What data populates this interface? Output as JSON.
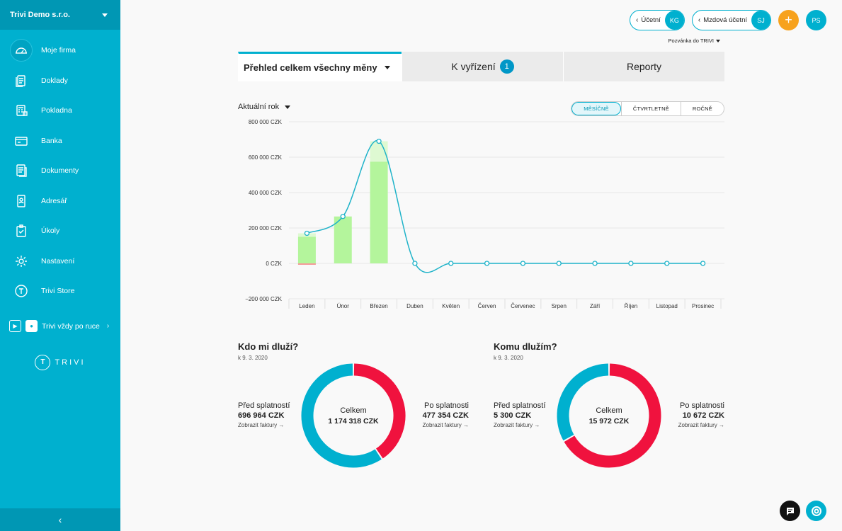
{
  "company": "Trivi Demo s.r.o.",
  "sidebar": {
    "items": [
      {
        "label": "Moje firma",
        "icon": "dashboard-icon"
      },
      {
        "label": "Doklady",
        "icon": "documents-icon"
      },
      {
        "label": "Pokladna",
        "icon": "cash-register-icon"
      },
      {
        "label": "Banka",
        "icon": "bank-card-icon"
      },
      {
        "label": "Dokumenty",
        "icon": "files-icon"
      },
      {
        "label": "Adresář",
        "icon": "address-book-icon"
      },
      {
        "label": "Úkoly",
        "icon": "clipboard-check-icon"
      },
      {
        "label": "Nastavení",
        "icon": "gear-icon"
      },
      {
        "label": "Trivi Store",
        "icon": "trivi-store-icon"
      }
    ],
    "apps_label": "Trivi vždy po ruce",
    "logo_text": "TRIVI",
    "logo_letter": "T"
  },
  "topbar": {
    "accountant": {
      "label": "Účetní",
      "initials": "KG"
    },
    "payroll": {
      "label": "Mzdová účetní",
      "initials": "SJ"
    },
    "user_initials": "PS",
    "invite": "Pozvánka do TRIVI"
  },
  "tabs": [
    {
      "label": "Přehled celkem všechny měny"
    },
    {
      "label": "K vyřízení",
      "badge": "1"
    },
    {
      "label": "Reporty"
    }
  ],
  "filters": {
    "year": "Aktuální rok",
    "periods": [
      "MĚSÍČNĚ",
      "ČTVRTLETNĚ",
      "ROČNĚ"
    ],
    "selected_period": "MĚSÍČNĚ"
  },
  "chart_data": {
    "type": "bar",
    "categories": [
      "Leden",
      "Únor",
      "Březen",
      "Duben",
      "Květen",
      "Červen",
      "Červenec",
      "Srpen",
      "Září",
      "Říjen",
      "Listopad",
      "Prosinec"
    ],
    "series": [
      {
        "values": [
          150000,
          265000,
          575000,
          0,
          0,
          0,
          0,
          0,
          0,
          0,
          0,
          0
        ]
      },
      {
        "values": [
          20000,
          0,
          115000,
          0,
          0,
          0,
          0,
          0,
          0,
          0,
          0,
          0
        ]
      },
      {
        "values": [
          -8000,
          0,
          0,
          0,
          0,
          0,
          0,
          0,
          0,
          0,
          0,
          0
        ]
      },
      {
        "values": [
          170000,
          265000,
          690000,
          0,
          0,
          0,
          0,
          0,
          0,
          0,
          0,
          0
        ]
      }
    ],
    "yticks": [
      "800 000 CZK",
      "600 000 CZK",
      "400 000 CZK",
      "200 000 CZK",
      "0 CZK",
      "−200 000 CZK"
    ],
    "ylim": [
      -200000,
      800000
    ],
    "colors": {
      "bar": "#b4f59c",
      "bar_light": "#def9d2",
      "negative": "#f59a9a",
      "line": "#1fb3c9"
    }
  },
  "receivables": {
    "title": "Kdo mi dluží?",
    "date": "k 9. 3. 2020",
    "before_label": "Před splatností",
    "before_amount": "696 964 CZK",
    "after_label": "Po splatnosti",
    "after_amount": "477 354 CZK",
    "total_label": "Celkem",
    "total_amount": "1 174 318 CZK",
    "link": "Zobrazit faktury →",
    "before_value": 696964,
    "after_value": 477354
  },
  "payables": {
    "title": "Komu dlužím?",
    "date": "k 9. 3. 2020",
    "before_label": "Před splatností",
    "before_amount": "5 300 CZK",
    "after_label": "Po splatnosti",
    "after_amount": "10 672 CZK",
    "total_label": "Celkem",
    "total_amount": "15 972 CZK",
    "link": "Zobrazit faktury →",
    "before_value": 5300,
    "after_value": 10672
  },
  "colors": {
    "accent": "#00b0cf",
    "before": "#00b0cf",
    "after": "#f0123e",
    "orange": "#f7a21d"
  }
}
